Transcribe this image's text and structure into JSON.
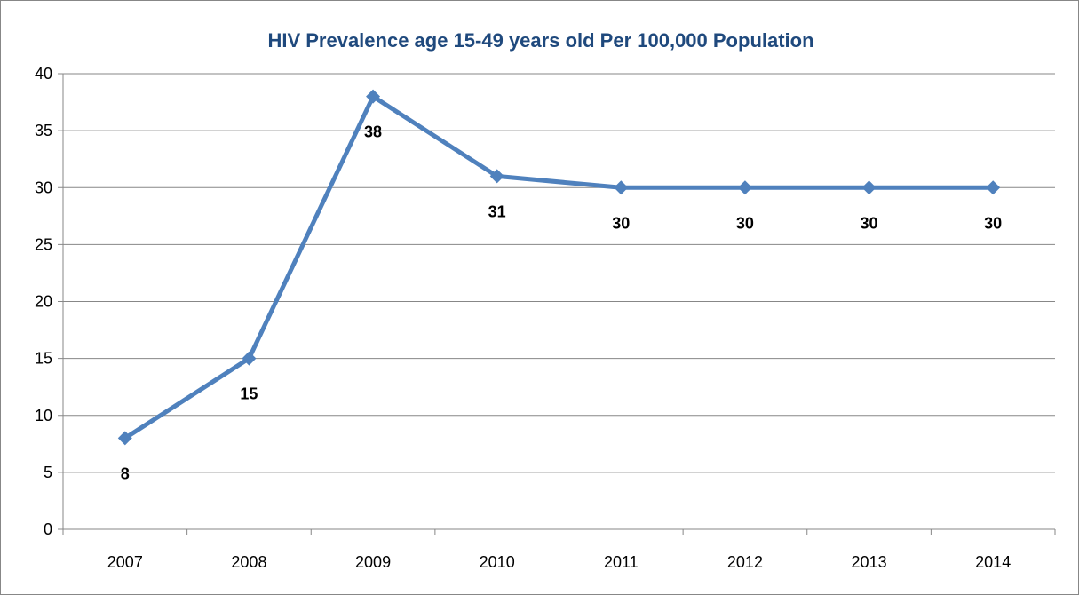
{
  "chart_data": {
    "type": "line",
    "title": "HIV Prevalence age 15-49 years old Per 100,000 Population",
    "xlabel": "",
    "ylabel": "",
    "categories": [
      "2007",
      "2008",
      "2009",
      "2010",
      "2011",
      "2012",
      "2013",
      "2014"
    ],
    "series": [
      {
        "values": [
          8,
          15,
          38,
          31,
          30,
          30,
          30,
          30
        ]
      }
    ],
    "data_labels": [
      "8",
      "15",
      "38",
      "31",
      "30",
      "30",
      "30",
      "30"
    ],
    "ylim": [
      0,
      40
    ],
    "yticks": [
      "0",
      "5",
      "10",
      "15",
      "20",
      "25",
      "30",
      "35",
      "40"
    ],
    "grid": true,
    "legend": "none",
    "colors": {
      "line": "#4F81BD",
      "title": "#1F497D",
      "grid": "#878787"
    }
  }
}
